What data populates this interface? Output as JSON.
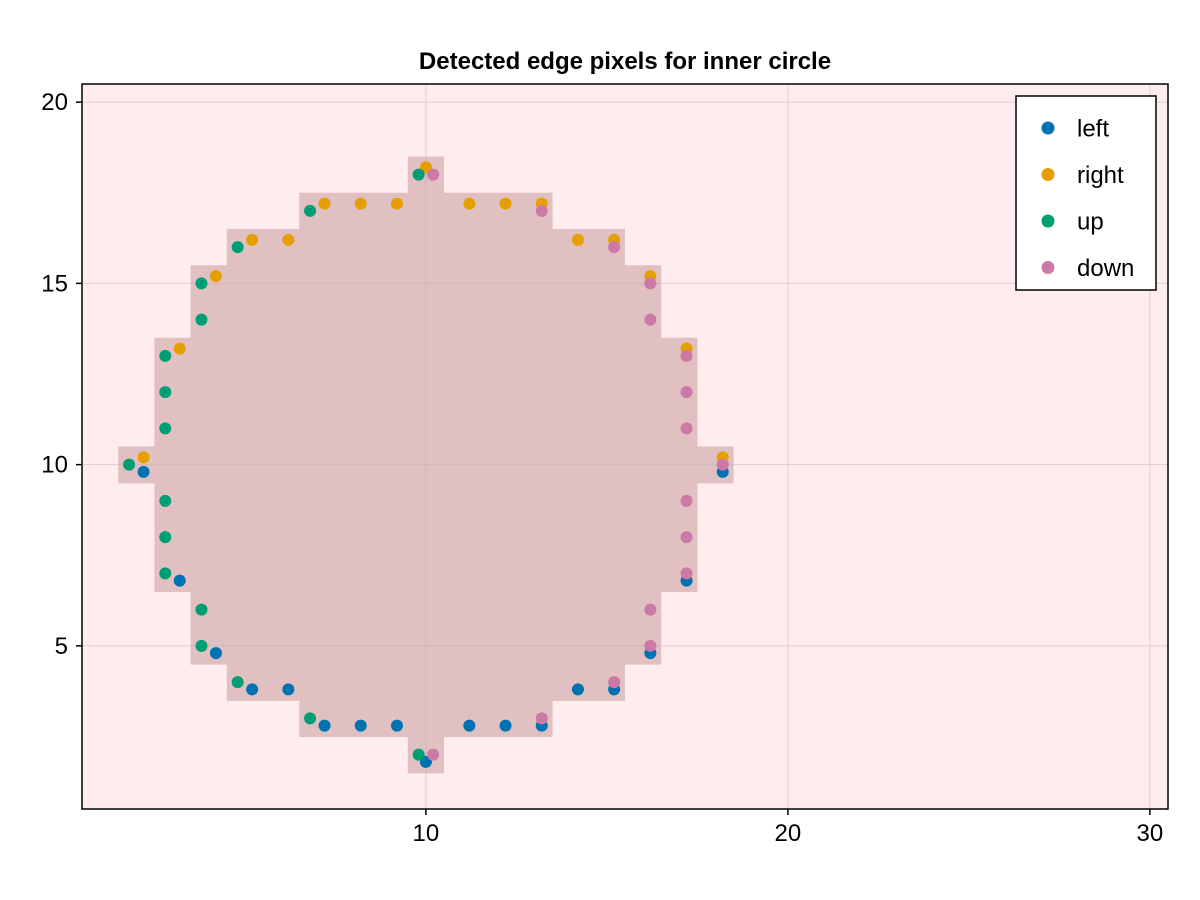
{
  "chart_data": {
    "type": "scatter",
    "title": "Detected edge pixels for inner circle",
    "xlabel": "",
    "ylabel": "",
    "xlim": [
      0.5,
      30.5
    ],
    "ylim": [
      0.5,
      20.5
    ],
    "xticks": [
      10,
      20,
      30
    ],
    "yticks": [
      5,
      10,
      15,
      20
    ],
    "grid": true,
    "legend_position": "top-right",
    "colors": {
      "background": "#ffecee",
      "mask": "#e0c0c1",
      "grid": "#c8b0b3",
      "axis": "#000000"
    },
    "mask_row_ranges": [
      {
        "y": 2,
        "x_min": 10,
        "x_max": 10
      },
      {
        "y": 3,
        "x_min": 7,
        "x_max": 13
      },
      {
        "y": 4,
        "x_min": 5,
        "x_max": 15
      },
      {
        "y": 5,
        "x_min": 4,
        "x_max": 16
      },
      {
        "y": 6,
        "x_min": 4,
        "x_max": 16
      },
      {
        "y": 7,
        "x_min": 3,
        "x_max": 17
      },
      {
        "y": 8,
        "x_min": 3,
        "x_max": 17
      },
      {
        "y": 9,
        "x_min": 3,
        "x_max": 17
      },
      {
        "y": 10,
        "x_min": 2,
        "x_max": 18
      },
      {
        "y": 11,
        "x_min": 3,
        "x_max": 17
      },
      {
        "y": 12,
        "x_min": 3,
        "x_max": 17
      },
      {
        "y": 13,
        "x_min": 3,
        "x_max": 17
      },
      {
        "y": 14,
        "x_min": 4,
        "x_max": 16
      },
      {
        "y": 15,
        "x_min": 4,
        "x_max": 16
      },
      {
        "y": 16,
        "x_min": 5,
        "x_max": 15
      },
      {
        "y": 17,
        "x_min": 7,
        "x_max": 13
      },
      {
        "y": 18,
        "x_min": 10,
        "x_max": 10
      }
    ],
    "series": [
      {
        "name": "left",
        "color": "#0072b2",
        "points": [
          [
            10,
            1.8
          ],
          [
            7.2,
            2.8
          ],
          [
            8.2,
            2.8
          ],
          [
            9.2,
            2.8
          ],
          [
            11.2,
            2.8
          ],
          [
            12.2,
            2.8
          ],
          [
            13.2,
            2.8
          ],
          [
            5.2,
            3.8
          ],
          [
            6.2,
            3.8
          ],
          [
            14.2,
            3.8
          ],
          [
            15.2,
            3.8
          ],
          [
            4.2,
            4.8
          ],
          [
            16.2,
            4.8
          ],
          [
            3.2,
            6.8
          ],
          [
            17.2,
            6.8
          ],
          [
            2.2,
            9.8
          ],
          [
            18.2,
            9.8
          ]
        ]
      },
      {
        "name": "right",
        "color": "#e69f00",
        "points": [
          [
            2.2,
            10.2
          ],
          [
            18.2,
            10.2
          ],
          [
            3.2,
            13.2
          ],
          [
            17.2,
            13.2
          ],
          [
            4.2,
            15.2
          ],
          [
            16.2,
            15.2
          ],
          [
            5.2,
            16.2
          ],
          [
            6.2,
            16.2
          ],
          [
            14.2,
            16.2
          ],
          [
            15.2,
            16.2
          ],
          [
            7.2,
            17.2
          ],
          [
            8.2,
            17.2
          ],
          [
            9.2,
            17.2
          ],
          [
            11.2,
            17.2
          ],
          [
            12.2,
            17.2
          ],
          [
            13.2,
            17.2
          ],
          [
            10,
            18.2
          ]
        ]
      },
      {
        "name": "up",
        "color": "#009e73",
        "points": [
          [
            9.8,
            2
          ],
          [
            6.8,
            3
          ],
          [
            4.8,
            4
          ],
          [
            3.8,
            5
          ],
          [
            3.8,
            6
          ],
          [
            2.8,
            7
          ],
          [
            2.8,
            8
          ],
          [
            2.8,
            9
          ],
          [
            1.8,
            10
          ],
          [
            2.8,
            11
          ],
          [
            2.8,
            12
          ],
          [
            2.8,
            13
          ],
          [
            3.8,
            14
          ],
          [
            3.8,
            15
          ],
          [
            4.8,
            16
          ],
          [
            6.8,
            17
          ],
          [
            9.8,
            18
          ]
        ]
      },
      {
        "name": "down",
        "color": "#cc79a7",
        "points": [
          [
            10.2,
            2
          ],
          [
            13.2,
            3
          ],
          [
            15.2,
            4
          ],
          [
            16.2,
            5
          ],
          [
            16.2,
            6
          ],
          [
            17.2,
            7
          ],
          [
            17.2,
            8
          ],
          [
            17.2,
            9
          ],
          [
            18.2,
            10
          ],
          [
            17.2,
            11
          ],
          [
            17.2,
            12
          ],
          [
            17.2,
            13
          ],
          [
            16.2,
            14
          ],
          [
            16.2,
            15
          ],
          [
            15.2,
            16
          ],
          [
            13.2,
            17
          ],
          [
            10.2,
            18
          ]
        ]
      }
    ]
  }
}
